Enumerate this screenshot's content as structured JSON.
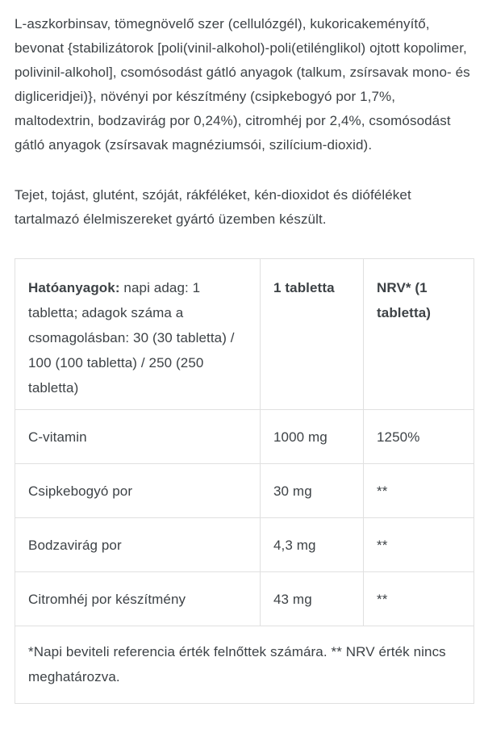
{
  "page": {
    "background_color": "#ffffff",
    "text_color": "#3d4246",
    "border_color": "#e0e0e0"
  },
  "ingredients_paragraph": "L-aszkorbinsav, tömegnövelő szer (cellulózgél), kukoricakeményítő, bevonat {stabilizátorok [poli(vinil-alkohol)-poli(etilénglikol) ojtott kopolimer, polivinil-alkohol], csomósodást gátló anyagok (talkum, zsírsavak mono- és digliceridjei)}, növényi por készítmény (csipkebogyó por 1,7%, maltodextrin, bodzavirág por 0,24%), citromhéj por 2,4%, csomósodást gátló anyagok (zsírsavak magnéziumsói, szilícium-dioxid).",
  "allergen_paragraph": "Tejet, tojást, glutént, szóját, rákféléket, kén-dioxidot és dióféléket tartalmazó élelmiszereket gyártó üzemben készült.",
  "nutrition_table": {
    "header": {
      "col1_bold": "Hatóanyagok:",
      "col1_rest": " napi adag: 1 tabletta; adagok száma a csomagolásban: 30 (30 tabletta) / 100 (100 tabletta) / 250 (250 tabletta)",
      "col2": "1 tabletta",
      "col3": "NRV* (1 tabletta)"
    },
    "rows": [
      {
        "name": "C-vitamin",
        "amount": "1000 mg",
        "nrv": "1250%"
      },
      {
        "name": "Csipkebogyó por",
        "amount": "30 mg",
        "nrv": "**"
      },
      {
        "name": "Bodzavirág por",
        "amount": "4,3 mg",
        "nrv": "**"
      },
      {
        "name": "Citromhéj por készítmény",
        "amount": "43 mg",
        "nrv": "**"
      }
    ],
    "footnote": "*Napi beviteli referencia érték felnőttek számára. ** NRV érték nincs meghatározva."
  }
}
